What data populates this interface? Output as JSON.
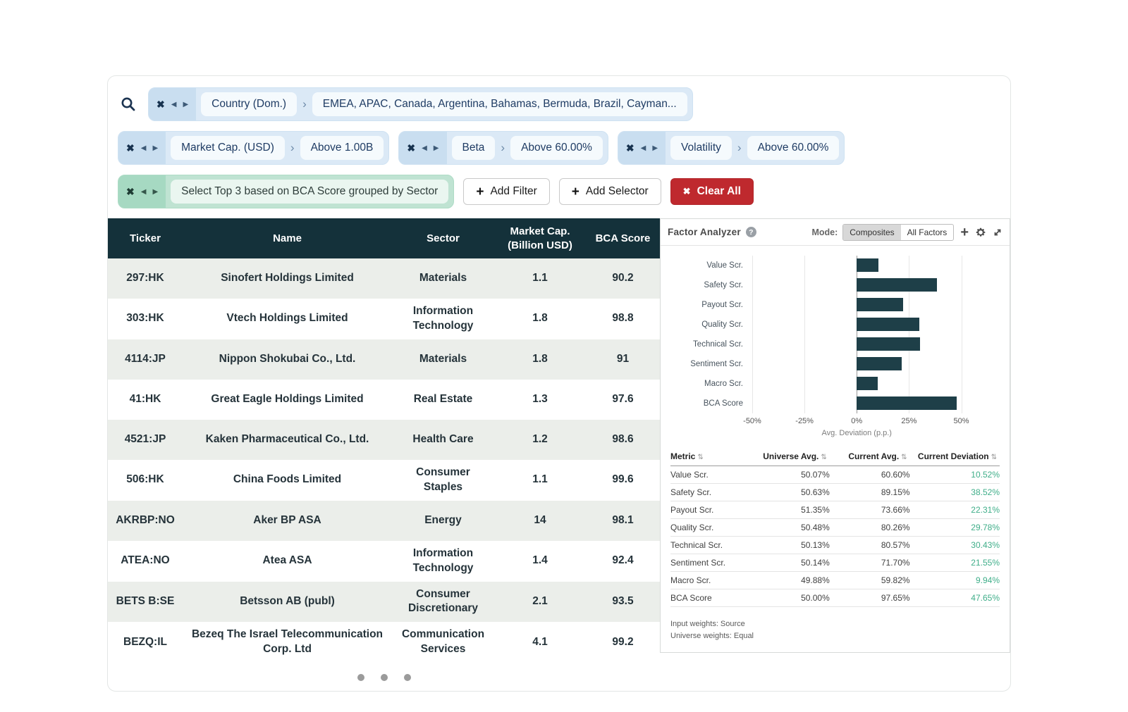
{
  "icons": {
    "close": "✖",
    "prev": "◀",
    "next": "▶",
    "chevron": "›",
    "plus": "+",
    "help": "?",
    "sort": "⇅"
  },
  "colors": {
    "header_teal": "#14313a",
    "bar_teal": "#1e3f48",
    "positive_green": "#3fae89",
    "danger_red": "#bf292e",
    "pill_blue": "#dbe9f6",
    "pill_green": "#bfe3d2"
  },
  "filter_bar": {
    "filters": [
      {
        "label": "Country (Dom.)",
        "value": "EMEA, APAC, Canada, Argentina, Bahamas, Bermuda, Brazil, Cayman..."
      },
      {
        "label": "Market Cap. (USD)",
        "value": "Above 1.00B"
      },
      {
        "label": "Beta",
        "value": "Above 60.00%"
      },
      {
        "label": "Volatility",
        "value": "Above 60.00%"
      }
    ],
    "selector": {
      "label": "Select Top 3 based on BCA Score grouped by Sector"
    },
    "add_filter_label": "Add Filter",
    "add_selector_label": "Add Selector",
    "clear_all_label": "Clear All"
  },
  "stock_table": {
    "columns": [
      "Ticker",
      "Name",
      "Sector",
      "Market Cap. (Billion USD)",
      "BCA Score"
    ],
    "rows": [
      {
        "ticker": "297:HK",
        "name": "Sinofert Holdings Limited",
        "sector": "Materials",
        "market_cap": "1.1",
        "bca_score": "90.2"
      },
      {
        "ticker": "303:HK",
        "name": "Vtech Holdings Limited",
        "sector": "Information Technology",
        "market_cap": "1.8",
        "bca_score": "98.8"
      },
      {
        "ticker": "4114:JP",
        "name": "Nippon Shokubai Co., Ltd.",
        "sector": "Materials",
        "market_cap": "1.8",
        "bca_score": "91"
      },
      {
        "ticker": "41:HK",
        "name": "Great Eagle Holdings Limited",
        "sector": "Real Estate",
        "market_cap": "1.3",
        "bca_score": "97.6"
      },
      {
        "ticker": "4521:JP",
        "name": "Kaken Pharmaceutical Co., Ltd.",
        "sector": "Health Care",
        "market_cap": "1.2",
        "bca_score": "98.6"
      },
      {
        "ticker": "506:HK",
        "name": "China Foods Limited",
        "sector": "Consumer Staples",
        "market_cap": "1.1",
        "bca_score": "99.6"
      },
      {
        "ticker": "AKRBP:NO",
        "name": "Aker BP ASA",
        "sector": "Energy",
        "market_cap": "14",
        "bca_score": "98.1"
      },
      {
        "ticker": "ATEA:NO",
        "name": "Atea ASA",
        "sector": "Information Technology",
        "market_cap": "1.4",
        "bca_score": "92.4"
      },
      {
        "ticker": "BETS B:SE",
        "name": "Betsson AB (publ)",
        "sector": "Consumer Discretionary",
        "market_cap": "2.1",
        "bca_score": "93.5"
      },
      {
        "ticker": "BEZQ:IL",
        "name": "Bezeq The Israel Telecommunication Corp. Ltd",
        "sector": "Communication Services",
        "market_cap": "4.1",
        "bca_score": "99.2"
      }
    ]
  },
  "factor_analyzer": {
    "title": "Factor Analyzer",
    "mode_label": "Mode:",
    "modes": [
      "Composites",
      "All Factors"
    ],
    "active_mode": "Composites",
    "metrics_table": {
      "columns": [
        "Metric",
        "Universe Avg.",
        "Current Avg.",
        "Current Deviation"
      ],
      "rows": [
        {
          "metric": "Value Scr.",
          "universe_avg": "50.07%",
          "current_avg": "60.60%",
          "current_deviation": "10.52%"
        },
        {
          "metric": "Safety Scr.",
          "universe_avg": "50.63%",
          "current_avg": "89.15%",
          "current_deviation": "38.52%"
        },
        {
          "metric": "Payout Scr.",
          "universe_avg": "51.35%",
          "current_avg": "73.66%",
          "current_deviation": "22.31%"
        },
        {
          "metric": "Quality Scr.",
          "universe_avg": "50.48%",
          "current_avg": "80.26%",
          "current_deviation": "29.78%"
        },
        {
          "metric": "Technical Scr.",
          "universe_avg": "50.13%",
          "current_avg": "80.57%",
          "current_deviation": "30.43%"
        },
        {
          "metric": "Sentiment Scr.",
          "universe_avg": "50.14%",
          "current_avg": "71.70%",
          "current_deviation": "21.55%"
        },
        {
          "metric": "Macro Scr.",
          "universe_avg": "49.88%",
          "current_avg": "59.82%",
          "current_deviation": "9.94%"
        },
        {
          "metric": "BCA Score",
          "universe_avg": "50.00%",
          "current_avg": "97.65%",
          "current_deviation": "47.65%"
        }
      ]
    },
    "footnotes": [
      "Input weights: Source",
      "Universe weights: Equal"
    ]
  },
  "chart_data": {
    "type": "bar",
    "orientation": "horizontal",
    "categories": [
      "Value Scr.",
      "Safety Scr.",
      "Payout Scr.",
      "Quality Scr.",
      "Technical Scr.",
      "Sentiment Scr.",
      "Macro Scr.",
      "BCA Score"
    ],
    "values": [
      10.52,
      38.52,
      22.31,
      29.78,
      30.43,
      21.55,
      9.94,
      47.65
    ],
    "title": "",
    "xlabel": "Avg. Deviation (p.p.)",
    "ylabel": "",
    "xlim": [
      -50,
      50
    ],
    "x_ticks": [
      "-50%",
      "-25%",
      "0%",
      "25%",
      "50%"
    ],
    "grid": true,
    "legend": false
  },
  "pagination": {
    "count": 3
  }
}
